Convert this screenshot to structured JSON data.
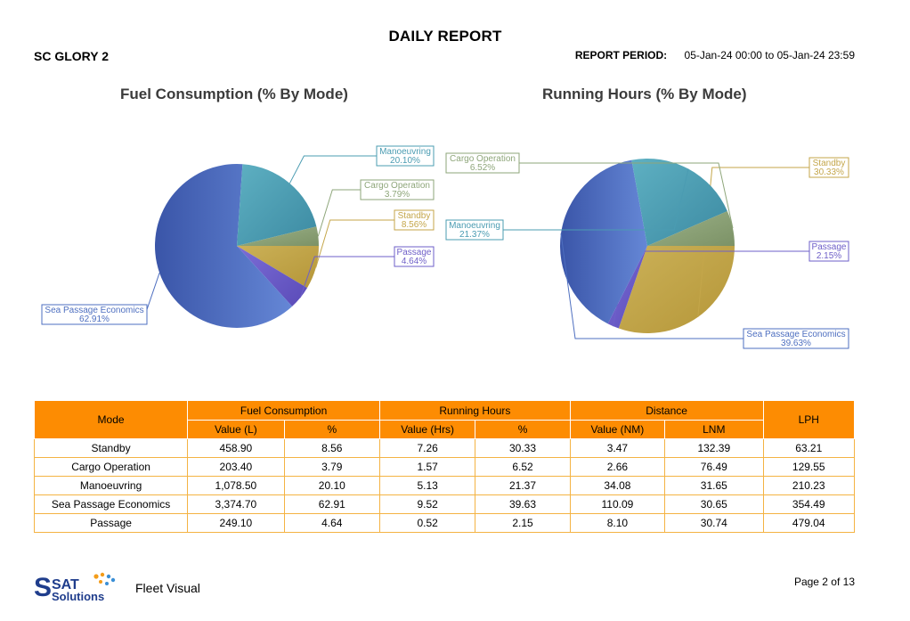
{
  "report": {
    "title": "DAILY REPORT",
    "vessel": "SC GLORY 2",
    "period_label": "REPORT PERIOD:",
    "period_value": "05-Jan-24 00:00 to 05-Jan-24 23:59"
  },
  "colors": {
    "standby": "#c4a64a",
    "cargo": "#8ea67a",
    "manoeuvring": "#4b9cb2",
    "sea_passage": "#4e6fc0",
    "passage": "#6e5fc8",
    "table_header": "#fd8c02",
    "table_border": "#f4b343"
  },
  "chart_data": [
    {
      "type": "pie",
      "title": "Fuel Consumption (% By Mode)",
      "slices": [
        {
          "label": "Standby",
          "value": 8.56,
          "display": "8.56%"
        },
        {
          "label": "Passage",
          "value": 4.64,
          "display": "4.64%"
        },
        {
          "label": "Sea Passage Economics",
          "value": 62.91,
          "display": "62.91%"
        },
        {
          "label": "Manoeuvring",
          "value": 20.1,
          "display": "20.10%"
        },
        {
          "label": "Cargo Operation",
          "value": 3.79,
          "display": "3.79%"
        }
      ]
    },
    {
      "type": "pie",
      "title": "Running Hours (% By Mode)",
      "slices": [
        {
          "label": "Standby",
          "value": 30.33,
          "display": "30.33%"
        },
        {
          "label": "Passage",
          "value": 2.15,
          "display": "2.15%"
        },
        {
          "label": "Sea Passage Economics",
          "value": 39.63,
          "display": "39.63%"
        },
        {
          "label": "Manoeuvring",
          "value": 21.37,
          "display": "21.37%"
        },
        {
          "label": "Cargo Operation",
          "value": 6.52,
          "display": "6.52%"
        }
      ]
    }
  ],
  "table": {
    "header_mode": "Mode",
    "group_fuel": "Fuel Consumption",
    "group_hours": "Running Hours",
    "group_distance": "Distance",
    "header_lph": "LPH",
    "sub_value_l": "Value (L)",
    "sub_pct_fuel": "%",
    "sub_value_hrs": "Value (Hrs)",
    "sub_pct_hours": "%",
    "sub_value_nm": "Value (NM)",
    "sub_lnm": "LNM",
    "rows": [
      [
        "Standby",
        "458.90",
        "8.56",
        "7.26",
        "30.33",
        "3.47",
        "132.39",
        "63.21"
      ],
      [
        "Cargo Operation",
        "203.40",
        "3.79",
        "1.57",
        "6.52",
        "2.66",
        "76.49",
        "129.55"
      ],
      [
        "Manoeuvring",
        "1,078.50",
        "20.10",
        "5.13",
        "21.37",
        "34.08",
        "31.65",
        "210.23"
      ],
      [
        "Sea Passage Economics",
        "3,374.70",
        "62.91",
        "9.52",
        "39.63",
        "110.09",
        "30.65",
        "354.49"
      ],
      [
        "Passage",
        "249.10",
        "4.64",
        "0.52",
        "2.15",
        "8.10",
        "30.74",
        "479.04"
      ]
    ]
  },
  "footer": {
    "logo_text_top": "SAT",
    "logo_text_bottom": "Solutions",
    "app_name": "Fleet Visual",
    "page": "Page 2 of 13"
  }
}
